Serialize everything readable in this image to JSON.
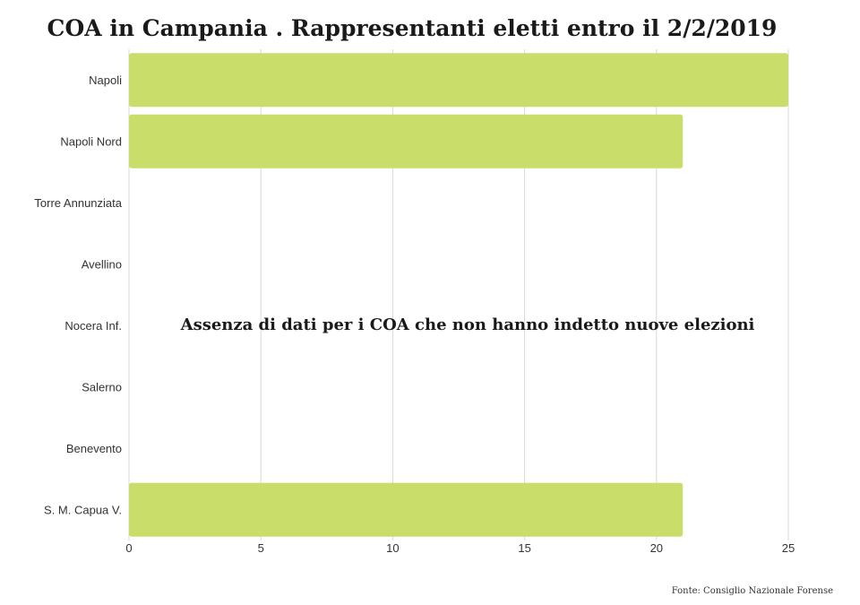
{
  "chart_data": {
    "type": "bar",
    "orientation": "horizontal",
    "title": "COA in Campania . Rappresentanti eletti entro il 2/2/2019",
    "categories": [
      "Napoli",
      "Napoli Nord",
      "Torre Annunziata",
      "Avellino",
      "Nocera Inf.",
      "Salerno",
      "Benevento",
      "S. M. Capua V."
    ],
    "values": [
      25,
      21,
      null,
      null,
      null,
      null,
      null,
      21
    ],
    "xlim": [
      0,
      25
    ],
    "xticks": [
      0,
      5,
      10,
      15,
      20,
      25
    ],
    "grid": true,
    "bar_color": "#c8dd6a",
    "annotation": "Assenza di dati per i COA che non hanno indetto nuove elezioni",
    "source": "Fonte: Consiglio Nazionale Forense"
  }
}
